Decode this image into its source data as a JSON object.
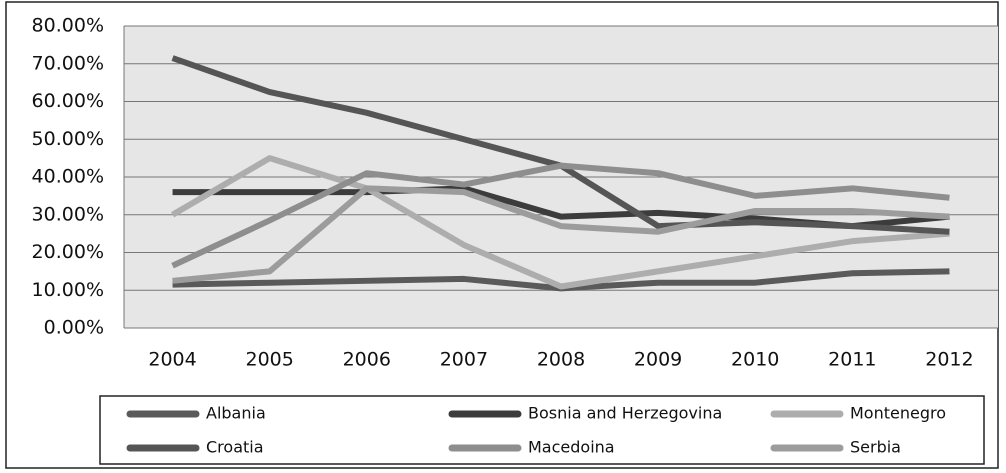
{
  "chart_data": {
    "type": "line",
    "categories": [
      "2004",
      "2005",
      "2006",
      "2007",
      "2008",
      "2009",
      "2010",
      "2011",
      "2012"
    ],
    "series": [
      {
        "name": "Albania",
        "color": "#5a5a5a",
        "values": [
          11.5,
          12,
          12.5,
          13,
          10.5,
          12,
          12,
          14.5,
          15
        ]
      },
      {
        "name": "Bosnia and Herzegovina",
        "color": "#3c3c3c",
        "values": [
          36,
          36,
          36,
          37,
          29.5,
          30.5,
          29,
          27,
          29.5
        ]
      },
      {
        "name": "Montenegro",
        "color": "#adadad",
        "values": [
          30,
          45,
          37,
          22,
          11,
          15,
          19,
          23,
          25
        ]
      },
      {
        "name": "Croatia",
        "color": "#555555",
        "values": [
          71.5,
          62.5,
          57,
          50,
          43,
          27,
          28,
          27,
          25.5
        ]
      },
      {
        "name": "Macedoina",
        "color": "#8e8e8e",
        "values": [
          16.5,
          28.5,
          41,
          38,
          43,
          41,
          35,
          37,
          34.5
        ]
      },
      {
        "name": "Serbia",
        "color": "#9c9c9c",
        "values": [
          12.5,
          15,
          37,
          36,
          27,
          25.5,
          31,
          31,
          29.5
        ]
      }
    ],
    "ylim": [
      0,
      80
    ],
    "yticks": [
      {
        "value": 0,
        "label": "0.00%"
      },
      {
        "value": 10,
        "label": "10.00%"
      },
      {
        "value": 20,
        "label": "20.00%"
      },
      {
        "value": 30,
        "label": "30.00%"
      },
      {
        "value": 40,
        "label": "40.00%"
      },
      {
        "value": 50,
        "label": "50.00%"
      },
      {
        "value": 60,
        "label": "60.00%"
      },
      {
        "value": 70,
        "label": "70.00%"
      },
      {
        "value": 80,
        "label": "80.00%"
      }
    ],
    "grid": true
  }
}
